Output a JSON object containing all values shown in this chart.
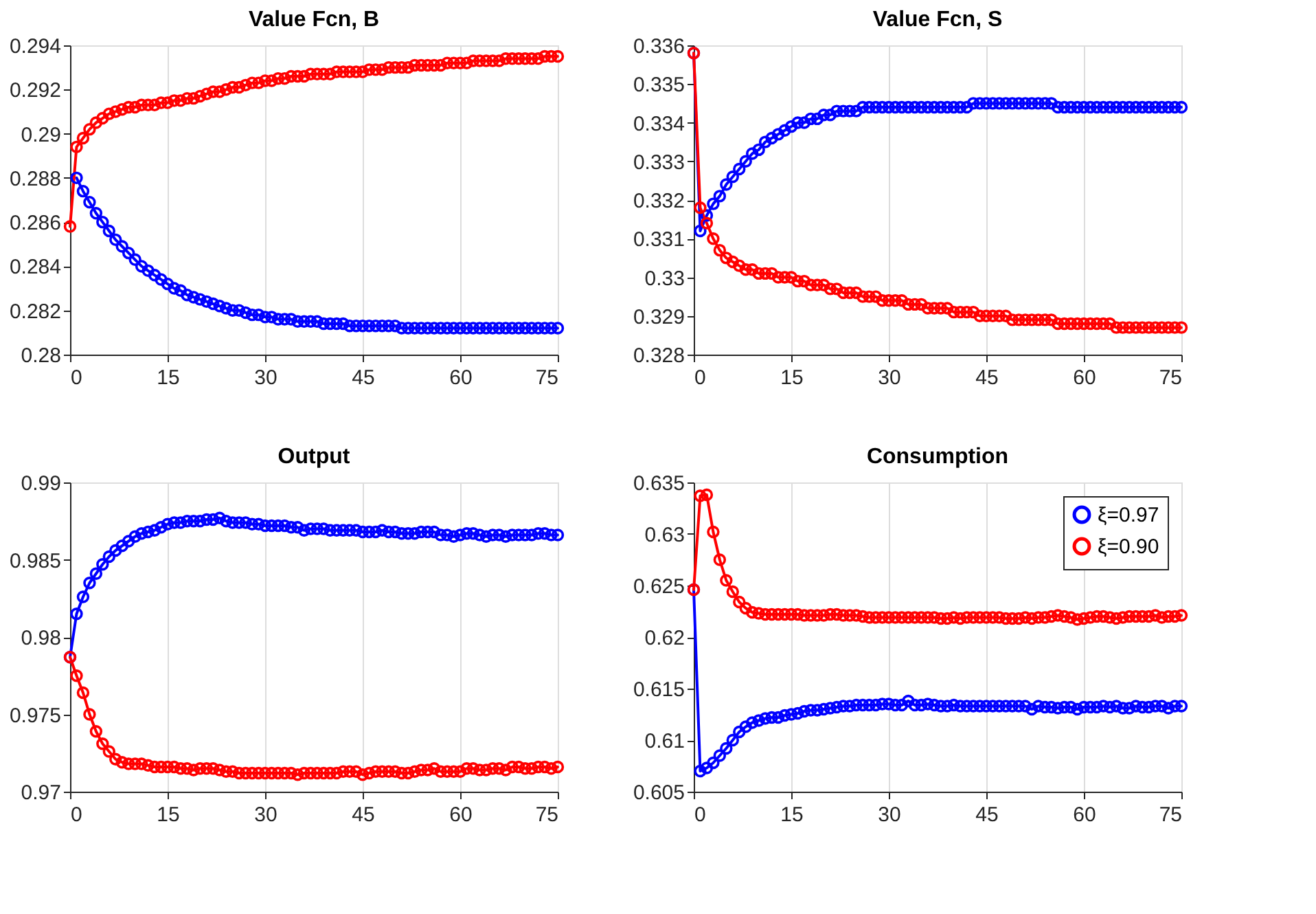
{
  "chart_data": [
    {
      "type": "line",
      "title": "Value Fcn, B",
      "marker": "circle",
      "line_style": "solid",
      "grid": "x",
      "legend": false,
      "xlim": [
        0,
        75
      ],
      "xticks": [
        0,
        15,
        30,
        45,
        60,
        75
      ],
      "ylim": [
        0.28,
        0.294
      ],
      "yticks": [
        0.28,
        0.282,
        0.284,
        0.286,
        0.288,
        0.29,
        0.292,
        0.294
      ],
      "x": [
        0,
        1,
        2,
        3,
        4,
        5,
        6,
        7,
        8,
        9,
        10,
        11,
        12,
        13,
        14,
        15,
        16,
        17,
        18,
        19,
        20,
        21,
        22,
        23,
        24,
        25,
        26,
        27,
        28,
        29,
        30,
        31,
        32,
        33,
        34,
        35,
        36,
        37,
        38,
        39,
        40,
        41,
        42,
        43,
        44,
        45,
        46,
        47,
        48,
        49,
        50,
        51,
        52,
        53,
        54,
        55,
        56,
        57,
        58,
        59,
        60,
        61,
        62,
        63,
        64,
        65,
        66,
        67,
        68,
        69,
        70,
        71,
        72,
        73,
        74,
        75
      ],
      "series": [
        {
          "color": "#0000ff",
          "values": [
            null,
            0.288,
            0.2874,
            0.2869,
            0.2864,
            0.286,
            0.2856,
            0.2852,
            0.2849,
            0.2846,
            0.2843,
            0.284,
            0.2838,
            0.2836,
            0.2834,
            0.2832,
            0.283,
            0.2829,
            0.2827,
            0.2826,
            0.2825,
            0.2824,
            0.2823,
            0.2822,
            0.2821,
            0.282,
            0.282,
            0.2819,
            0.2818,
            0.2818,
            0.2817,
            0.2817,
            0.2816,
            0.2816,
            0.2816,
            0.2815,
            0.2815,
            0.2815,
            0.2815,
            0.2814,
            0.2814,
            0.2814,
            0.2814,
            0.2813,
            0.2813,
            0.2813,
            0.2813,
            0.2813,
            0.2813,
            0.2813,
            0.2813,
            0.2812,
            0.2812,
            0.2812,
            0.2812,
            0.2812,
            0.2812,
            0.2812,
            0.2812,
            0.2812,
            0.2812,
            0.2812,
            0.2812,
            0.2812,
            0.2812,
            0.2812,
            0.2812,
            0.2812,
            0.2812,
            0.2812,
            0.2812,
            0.2812,
            0.2812,
            0.2812,
            0.2812,
            0.2812
          ]
        },
        {
          "color": "#ff0000",
          "values": [
            0.2858,
            0.2894,
            0.2898,
            0.2902,
            0.2905,
            0.2907,
            0.2909,
            0.291,
            0.2911,
            0.2912,
            0.2912,
            0.2913,
            0.2913,
            0.2913,
            0.2914,
            0.2914,
            0.2915,
            0.2915,
            0.2916,
            0.2916,
            0.2917,
            0.2918,
            0.2919,
            0.2919,
            0.292,
            0.2921,
            0.2921,
            0.2922,
            0.2923,
            0.2923,
            0.2924,
            0.2924,
            0.2925,
            0.2925,
            0.2926,
            0.2926,
            0.2926,
            0.2927,
            0.2927,
            0.2927,
            0.2927,
            0.2928,
            0.2928,
            0.2928,
            0.2928,
            0.2928,
            0.2929,
            0.2929,
            0.2929,
            0.293,
            0.293,
            0.293,
            0.293,
            0.2931,
            0.2931,
            0.2931,
            0.2931,
            0.2931,
            0.2932,
            0.2932,
            0.2932,
            0.2932,
            0.2933,
            0.2933,
            0.2933,
            0.2933,
            0.2933,
            0.2934,
            0.2934,
            0.2934,
            0.2934,
            0.2934,
            0.2934,
            0.2935,
            0.2935,
            0.2935
          ]
        }
      ]
    },
    {
      "type": "line",
      "title": "Value Fcn, S",
      "marker": "circle",
      "line_style": "solid",
      "grid": "x",
      "legend": false,
      "xlim": [
        0,
        75
      ],
      "xticks": [
        0,
        15,
        30,
        45,
        60,
        75
      ],
      "ylim": [
        0.328,
        0.336
      ],
      "yticks": [
        0.328,
        0.329,
        0.33,
        0.331,
        0.332,
        0.333,
        0.334,
        0.335,
        0.336
      ],
      "x": [
        0,
        1,
        2,
        3,
        4,
        5,
        6,
        7,
        8,
        9,
        10,
        11,
        12,
        13,
        14,
        15,
        16,
        17,
        18,
        19,
        20,
        21,
        22,
        23,
        24,
        25,
        26,
        27,
        28,
        29,
        30,
        31,
        32,
        33,
        34,
        35,
        36,
        37,
        38,
        39,
        40,
        41,
        42,
        43,
        44,
        45,
        46,
        47,
        48,
        49,
        50,
        51,
        52,
        53,
        54,
        55,
        56,
        57,
        58,
        59,
        60,
        61,
        62,
        63,
        64,
        65,
        66,
        67,
        68,
        69,
        70,
        71,
        72,
        73,
        74,
        75
      ],
      "series": [
        {
          "color": "#0000ff",
          "values": [
            0.3358,
            0.3312,
            0.3316,
            0.3319,
            0.3321,
            0.3324,
            0.3326,
            0.3328,
            0.333,
            0.3332,
            0.3333,
            0.3335,
            0.3336,
            0.3337,
            0.3338,
            0.3339,
            0.334,
            0.334,
            0.3341,
            0.3341,
            0.3342,
            0.3342,
            0.3343,
            0.3343,
            0.3343,
            0.3343,
            0.3344,
            0.3344,
            0.3344,
            0.3344,
            0.3344,
            0.3344,
            0.3344,
            0.3344,
            0.3344,
            0.3344,
            0.3344,
            0.3344,
            0.3344,
            0.3344,
            0.3344,
            0.3344,
            0.3344,
            0.3345,
            0.3345,
            0.3345,
            0.3345,
            0.3345,
            0.3345,
            0.3345,
            0.3345,
            0.3345,
            0.3345,
            0.3345,
            0.3345,
            0.3345,
            0.3344,
            0.3344,
            0.3344,
            0.3344,
            0.3344,
            0.3344,
            0.3344,
            0.3344,
            0.3344,
            0.3344,
            0.3344,
            0.3344,
            0.3344,
            0.3344,
            0.3344,
            0.3344,
            0.3344,
            0.3344,
            0.3344,
            0.3344
          ]
        },
        {
          "color": "#ff0000",
          "values": [
            0.3358,
            0.3318,
            0.3314,
            0.331,
            0.3307,
            0.3305,
            0.3304,
            0.3303,
            0.3302,
            0.3302,
            0.3301,
            0.3301,
            0.3301,
            0.33,
            0.33,
            0.33,
            0.3299,
            0.3299,
            0.3298,
            0.3298,
            0.3298,
            0.3297,
            0.3297,
            0.3296,
            0.3296,
            0.3296,
            0.3295,
            0.3295,
            0.3295,
            0.3294,
            0.3294,
            0.3294,
            0.3294,
            0.3293,
            0.3293,
            0.3293,
            0.3292,
            0.3292,
            0.3292,
            0.3292,
            0.3291,
            0.3291,
            0.3291,
            0.3291,
            0.329,
            0.329,
            0.329,
            0.329,
            0.329,
            0.3289,
            0.3289,
            0.3289,
            0.3289,
            0.3289,
            0.3289,
            0.3289,
            0.3288,
            0.3288,
            0.3288,
            0.3288,
            0.3288,
            0.3288,
            0.3288,
            0.3288,
            0.3288,
            0.3287,
            0.3287,
            0.3287,
            0.3287,
            0.3287,
            0.3287,
            0.3287,
            0.3287,
            0.3287,
            0.3287,
            0.3287
          ]
        }
      ]
    },
    {
      "type": "line",
      "title": "Output",
      "marker": "circle",
      "line_style": "solid",
      "grid": "x",
      "legend": false,
      "xlim": [
        0,
        75
      ],
      "xticks": [
        0,
        15,
        30,
        45,
        60,
        75
      ],
      "ylim": [
        0.97,
        0.99
      ],
      "yticks": [
        0.97,
        0.975,
        0.98,
        0.985,
        0.99
      ],
      "x": [
        0,
        1,
        2,
        3,
        4,
        5,
        6,
        7,
        8,
        9,
        10,
        11,
        12,
        13,
        14,
        15,
        16,
        17,
        18,
        19,
        20,
        21,
        22,
        23,
        24,
        25,
        26,
        27,
        28,
        29,
        30,
        31,
        32,
        33,
        34,
        35,
        36,
        37,
        38,
        39,
        40,
        41,
        42,
        43,
        44,
        45,
        46,
        47,
        48,
        49,
        50,
        51,
        52,
        53,
        54,
        55,
        56,
        57,
        58,
        59,
        60,
        61,
        62,
        63,
        64,
        65,
        66,
        67,
        68,
        69,
        70,
        71,
        72,
        73,
        74,
        75
      ],
      "series": [
        {
          "color": "#0000ff",
          "values": [
            0.9787,
            0.9815,
            0.9826,
            0.9835,
            0.9841,
            0.9847,
            0.9852,
            0.9856,
            0.9859,
            0.9862,
            0.9865,
            0.9867,
            0.9868,
            0.9869,
            0.9871,
            0.9873,
            0.9874,
            0.9874,
            0.9875,
            0.9875,
            0.9875,
            0.9876,
            0.9876,
            0.9877,
            0.9875,
            0.9874,
            0.9874,
            0.9874,
            0.9873,
            0.9873,
            0.9872,
            0.9872,
            0.9872,
            0.9872,
            0.9871,
            0.9871,
            0.9869,
            0.987,
            0.987,
            0.987,
            0.9869,
            0.9869,
            0.9869,
            0.9869,
            0.9869,
            0.9868,
            0.9868,
            0.9868,
            0.9869,
            0.9868,
            0.9868,
            0.9867,
            0.9867,
            0.9867,
            0.9868,
            0.9868,
            0.9868,
            0.9866,
            0.9866,
            0.9865,
            0.9866,
            0.9867,
            0.9867,
            0.9866,
            0.9865,
            0.9866,
            0.9866,
            0.9865,
            0.9866,
            0.9866,
            0.9866,
            0.9866,
            0.9867,
            0.9867,
            0.9866,
            0.9866
          ]
        },
        {
          "color": "#ff0000",
          "values": [
            0.9787,
            0.9775,
            0.9764,
            0.975,
            0.9739,
            0.9731,
            0.9726,
            0.9721,
            0.9719,
            0.9718,
            0.9718,
            0.9718,
            0.9717,
            0.9716,
            0.9716,
            0.9716,
            0.9716,
            0.9715,
            0.9715,
            0.9714,
            0.9715,
            0.9715,
            0.9715,
            0.9714,
            0.9713,
            0.9713,
            0.9712,
            0.9712,
            0.9712,
            0.9712,
            0.9712,
            0.9712,
            0.9712,
            0.9712,
            0.9712,
            0.9711,
            0.9712,
            0.9712,
            0.9712,
            0.9712,
            0.9712,
            0.9712,
            0.9713,
            0.9713,
            0.9713,
            0.9711,
            0.9712,
            0.9713,
            0.9713,
            0.9713,
            0.9713,
            0.9712,
            0.9712,
            0.9713,
            0.9714,
            0.9714,
            0.9715,
            0.9713,
            0.9713,
            0.9713,
            0.9713,
            0.9715,
            0.9715,
            0.9714,
            0.9714,
            0.9715,
            0.9715,
            0.9714,
            0.9716,
            0.9716,
            0.9715,
            0.9715,
            0.9716,
            0.9716,
            0.9715,
            0.9716
          ]
        }
      ]
    },
    {
      "type": "line",
      "title": "Consumption",
      "marker": "circle",
      "line_style": "solid",
      "grid": "x",
      "legend": "top right",
      "xlim": [
        0,
        75
      ],
      "xticks": [
        0,
        15,
        30,
        45,
        60,
        75
      ],
      "ylim": [
        0.605,
        0.635
      ],
      "yticks": [
        0.605,
        0.61,
        0.615,
        0.62,
        0.625,
        0.63,
        0.635
      ],
      "x": [
        0,
        1,
        2,
        3,
        4,
        5,
        6,
        7,
        8,
        9,
        10,
        11,
        12,
        13,
        14,
        15,
        16,
        17,
        18,
        19,
        20,
        21,
        22,
        23,
        24,
        25,
        26,
        27,
        28,
        29,
        30,
        31,
        32,
        33,
        34,
        35,
        36,
        37,
        38,
        39,
        40,
        41,
        42,
        43,
        44,
        45,
        46,
        47,
        48,
        49,
        50,
        51,
        52,
        53,
        54,
        55,
        56,
        57,
        58,
        59,
        60,
        61,
        62,
        63,
        64,
        65,
        66,
        67,
        68,
        69,
        70,
        71,
        72,
        73,
        74,
        75
      ],
      "series": [
        {
          "name": "ξ=0.97",
          "color": "#0000ff",
          "values": [
            0.6246,
            0.607,
            0.6073,
            0.6078,
            0.6085,
            0.6092,
            0.61,
            0.6108,
            0.6113,
            0.6117,
            0.6119,
            0.6121,
            0.6122,
            0.6122,
            0.6124,
            0.6125,
            0.6126,
            0.6128,
            0.6129,
            0.6129,
            0.613,
            0.6131,
            0.6132,
            0.6133,
            0.6133,
            0.6134,
            0.6134,
            0.6134,
            0.6134,
            0.6135,
            0.6135,
            0.6134,
            0.6134,
            0.6138,
            0.6134,
            0.6134,
            0.6135,
            0.6134,
            0.6133,
            0.6133,
            0.6134,
            0.6133,
            0.6133,
            0.6133,
            0.6133,
            0.6133,
            0.6133,
            0.6133,
            0.6133,
            0.6133,
            0.6133,
            0.6133,
            0.613,
            0.6133,
            0.6132,
            0.6132,
            0.6131,
            0.6132,
            0.6132,
            0.613,
            0.6132,
            0.6132,
            0.6132,
            0.6133,
            0.6132,
            0.6133,
            0.6131,
            0.6131,
            0.6133,
            0.6132,
            0.6132,
            0.6133,
            0.6133,
            0.6131,
            0.6133,
            0.6133
          ]
        },
        {
          "name": "ξ=0.90",
          "color": "#ff0000",
          "values": [
            0.6246,
            0.6337,
            0.6338,
            0.6302,
            0.6275,
            0.6255,
            0.6244,
            0.6234,
            0.6228,
            0.6224,
            0.6223,
            0.6222,
            0.6222,
            0.6222,
            0.6222,
            0.6222,
            0.6222,
            0.6221,
            0.6221,
            0.6221,
            0.6221,
            0.6222,
            0.6222,
            0.6221,
            0.6221,
            0.6221,
            0.622,
            0.6219,
            0.6219,
            0.6219,
            0.6219,
            0.6219,
            0.6219,
            0.6219,
            0.6219,
            0.6219,
            0.6219,
            0.6219,
            0.6218,
            0.6218,
            0.6219,
            0.6218,
            0.6219,
            0.6219,
            0.6219,
            0.6219,
            0.6219,
            0.6219,
            0.6218,
            0.6218,
            0.6218,
            0.6219,
            0.6218,
            0.6219,
            0.6219,
            0.622,
            0.6221,
            0.622,
            0.6219,
            0.6217,
            0.6218,
            0.6219,
            0.622,
            0.622,
            0.6219,
            0.6218,
            0.6219,
            0.622,
            0.622,
            0.622,
            0.622,
            0.6221,
            0.6219,
            0.622,
            0.622,
            0.6221
          ]
        }
      ]
    }
  ]
}
